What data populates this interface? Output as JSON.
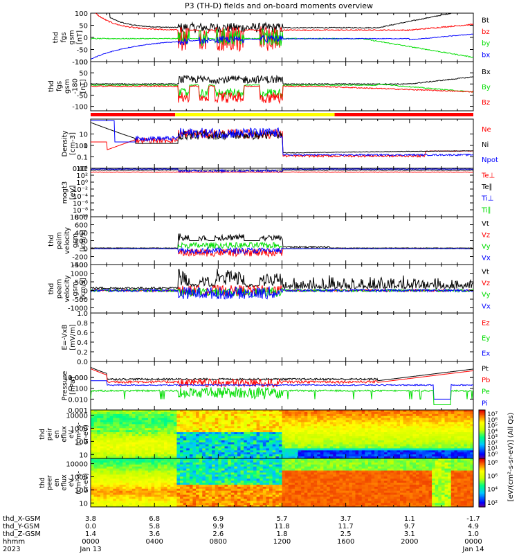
{
  "title": "P3 (TH-D) fields and on-board moments overview",
  "colors": {
    "black": "#000000",
    "red": "#ff0000",
    "green": "#00dd00",
    "blue": "#0000ff",
    "bar_red": "#ff0000",
    "bar_yellow": "#ffff00"
  },
  "chart_data": [
    {
      "id": "fgs_gsm",
      "type": "line",
      "ylabel": [
        "thd",
        "fgs",
        "gsm",
        "[nT]"
      ],
      "yticks": [
        100,
        50,
        0,
        -50,
        -100
      ],
      "ylim": [
        -100,
        100
      ],
      "legend": [
        {
          "label": "Bt",
          "color": "black"
        },
        {
          "label": "bz",
          "color": "red"
        },
        {
          "label": "by",
          "color": "green"
        },
        {
          "label": "bx",
          "color": "blue"
        }
      ]
    },
    {
      "id": "fgs_dsl",
      "type": "line",
      "ylabel": [
        "thd",
        "fgs",
        "gsm",
        "-180",
        "[nT]"
      ],
      "yticks": [
        100,
        50,
        0,
        -50,
        -100
      ],
      "ylim": [
        -120,
        100
      ],
      "legend": [
        {
          "label": "Bx",
          "color": "black"
        },
        {
          "label": "By",
          "color": "green"
        },
        {
          "label": "Bz",
          "color": "red"
        }
      ]
    },
    {
      "id": "density",
      "type": "line",
      "ylabel": [
        "Density",
        "[cm-3]"
      ],
      "yticks": [
        "100",
        "10",
        "1",
        "0.1",
        "0.01"
      ],
      "ylim": [
        0.01,
        200
      ],
      "log": true,
      "legend": [
        {
          "label": "Ne",
          "color": "red"
        },
        {
          "label": "Ni",
          "color": "black"
        },
        {
          "label": "Npot",
          "color": "blue"
        }
      ]
    },
    {
      "id": "temperature",
      "type": "line",
      "ylabel": [
        "mogt3",
        "[eV]"
      ],
      "yticks": [
        "10⁴",
        "10²",
        "10⁰",
        "10⁻²",
        "10⁻⁴",
        "10⁻⁶",
        "10⁻⁸",
        "10⁻¹⁰"
      ],
      "ylim": [
        1e-10,
        10000.0
      ],
      "log": true,
      "legend": [
        {
          "label": "Te⊥",
          "color": "red"
        },
        {
          "label": "Te∥",
          "color": "black"
        },
        {
          "label": "Ti⊥",
          "color": "blue"
        },
        {
          "label": "Ti∥",
          "color": "green"
        }
      ]
    },
    {
      "id": "peim_velocity",
      "type": "line",
      "ylabel": [
        "thd",
        "peim",
        "velocity",
        "gsm",
        "[km/s]"
      ],
      "yticks": [
        800,
        600,
        400,
        200,
        0,
        -200,
        -400
      ],
      "ylim": [
        -400,
        800
      ],
      "legend": [
        {
          "label": "Vt",
          "color": "black"
        },
        {
          "label": "Vz",
          "color": "red"
        },
        {
          "label": "Vy",
          "color": "green"
        },
        {
          "label": "Vx",
          "color": "blue"
        }
      ]
    },
    {
      "id": "peem_velocity",
      "type": "line",
      "ylabel": [
        "thd",
        "peem",
        "velocity",
        "gsm",
        "[km/s]"
      ],
      "yticks": [
        1500,
        1000,
        500,
        0,
        -500,
        -1000
      ],
      "ylim": [
        -1300,
        1500
      ],
      "legend": [
        {
          "label": "Vt",
          "color": "black"
        },
        {
          "label": "Vz",
          "color": "red"
        },
        {
          "label": "Vy",
          "color": "green"
        },
        {
          "label": "Vx",
          "color": "blue"
        }
      ]
    },
    {
      "id": "e_field",
      "type": "line",
      "ylabel": [
        "E=-VxB",
        "[mV/m]"
      ],
      "yticks": [
        "1.0",
        "0.8",
        "0.6",
        "0.4",
        "0.2",
        "0.0"
      ],
      "ylim": [
        0,
        1
      ],
      "legend": [
        {
          "label": "Ez",
          "color": "red"
        },
        {
          "label": "Ey",
          "color": "green"
        },
        {
          "label": "Ex",
          "color": "blue"
        }
      ]
    },
    {
      "id": "pressure",
      "type": "line",
      "ylabel": [
        "Pressure",
        "[nPa]"
      ],
      "yticks": [
        "10.000",
        "1.000",
        "0.100",
        "0.010",
        "0.001"
      ],
      "ylim": [
        0.001,
        30
      ],
      "log": true,
      "legend": [
        {
          "label": "Pt",
          "color": "black"
        },
        {
          "label": "Pb",
          "color": "red"
        },
        {
          "label": "Pe",
          "color": "green"
        },
        {
          "label": "Pi",
          "color": "blue"
        }
      ]
    },
    {
      "id": "peir_eflux",
      "type": "heatmap",
      "ylabel": [
        "thd",
        "peir",
        "en",
        "eflux",
        "eV",
        "(cm²-s-",
        "sr-eV)"
      ],
      "yticks": [
        "10000",
        "1000",
        "100",
        "10"
      ],
      "ylim": [
        5,
        25000
      ],
      "log": true,
      "colorbar_ticks": [
        "10⁷",
        "10⁶",
        "10⁵",
        "10⁴",
        "10³",
        "10²",
        "10¹",
        "10⁰"
      ]
    },
    {
      "id": "peer_eflux",
      "type": "heatmap",
      "ylabel": [
        "thd",
        "peer",
        "en",
        "eflux",
        "eV",
        "(cm²-s-",
        "sr-eV)"
      ],
      "yticks": [
        "10000",
        "1000",
        "100",
        "10"
      ],
      "ylim": [
        5,
        25000
      ],
      "log": true,
      "colorbar_ticks": [
        "10⁸",
        "10⁶",
        "10⁴",
        "10²"
      ],
      "colorbar_label": "[eV/(cm²-s-sr-eV)] (All Qs)"
    }
  ],
  "mode_bar": [
    {
      "from": 0.0,
      "to": 5.3,
      "color": "bar_red"
    },
    {
      "from": 5.3,
      "to": 15.3,
      "color": "bar_yellow"
    },
    {
      "from": 15.3,
      "to": 24.0,
      "color": "bar_red"
    }
  ],
  "x_axis": {
    "rows": [
      {
        "label": "thd_X-GSM",
        "values": [
          "3.8",
          "6.8",
          "6.9",
          "5.7",
          "3.7",
          "1.1",
          "-1.7"
        ]
      },
      {
        "label": "thd_Y-GSM",
        "values": [
          "0.0",
          "5.8",
          "9.9",
          "11.8",
          "11.7",
          "9.7",
          "4.9"
        ]
      },
      {
        "label": "thd_Z-GSM",
        "values": [
          "1.4",
          "3.6",
          "2.6",
          "1.8",
          "2.5",
          "3.1",
          "1.0"
        ]
      },
      {
        "label": "hhmm",
        "values": [
          "0000",
          "0400",
          "0800",
          "1200",
          "1600",
          "2000",
          "0000"
        ]
      },
      {
        "label": "2023",
        "values": [
          "Jan 13",
          "",
          "",
          "",
          "",
          "",
          "Jan 14"
        ]
      }
    ]
  }
}
